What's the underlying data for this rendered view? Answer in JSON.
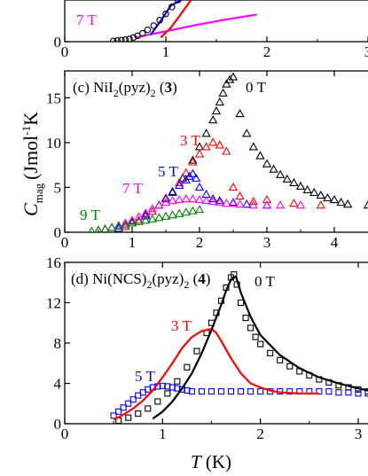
{
  "figure": {
    "ylabel_main": "C",
    "ylabel_sub": "mag",
    "ylabel_units": "(Jmol",
    "ylabel_sup": "-1",
    "ylabel_tail": "K",
    "xlabel_italic": "T",
    "xlabel_units": " (K)"
  },
  "chart_data": [
    {
      "type": "scatter",
      "title": "",
      "xlim": [
        0,
        3
      ],
      "ylim": [
        0,
        3
      ],
      "xticks": [
        "0",
        "1",
        "2",
        "3"
      ],
      "annotations": [
        {
          "text": "7 T",
          "color": "#ff00ff"
        }
      ],
      "series": [
        {
          "name": "7 T",
          "color": "#ff00ff",
          "marker": "line",
          "x": [
            0.7,
            1.0,
            1.3,
            1.6,
            1.9
          ],
          "y": [
            0.3,
            0.75,
            1.2,
            1.6,
            1.95
          ]
        },
        {
          "name": "",
          "color": "#ff0000",
          "marker": "line",
          "x": [
            0.95,
            1.05,
            1.15,
            1.25
          ],
          "y": [
            0.3,
            1.0,
            2.0,
            3.0
          ]
        },
        {
          "name": "",
          "color": "#0000ff",
          "marker": "line",
          "x": [
            0.85,
            0.95,
            1.05,
            1.15
          ],
          "y": [
            0.5,
            1.5,
            2.6,
            3.0
          ]
        },
        {
          "name": "",
          "color": "#000000",
          "marker": "circle",
          "x": [
            0.48,
            0.52,
            0.56,
            0.6,
            0.64,
            0.68,
            0.72,
            0.77,
            0.82,
            0.88,
            0.94,
            1.0,
            1.06,
            1.12
          ],
          "y": [
            0.05,
            0.08,
            0.1,
            0.14,
            0.2,
            0.3,
            0.42,
            0.6,
            0.85,
            1.15,
            1.55,
            2.0,
            2.5,
            3.0
          ]
        }
      ]
    },
    {
      "type": "scatter",
      "title": "(c) NiI2(pyz)2 (3)",
      "title_parts": {
        "a": "(c) NiI",
        "b": "2",
        "c": "(pyz)",
        "d": "2",
        "e": " (",
        "f": "3",
        "g": ")"
      },
      "xlim": [
        0,
        4.5
      ],
      "ylim": [
        0,
        18
      ],
      "xticks": [
        "0",
        "1",
        "2",
        "3",
        "4"
      ],
      "yticks": [
        "0",
        "5",
        "10",
        "15"
      ],
      "annotations": [
        {
          "text": "0 T",
          "color": "#000000"
        },
        {
          "text": "3 T",
          "color": "#ff0000"
        },
        {
          "text": "5 T",
          "color": "#0000ff"
        },
        {
          "text": "7 T",
          "color": "#ff00ff"
        },
        {
          "text": "9 T",
          "color": "#008000"
        }
      ],
      "series": [
        {
          "name": "0 T",
          "color": "#000000",
          "marker": "triangle",
          "x": [
            0.8,
            1.0,
            1.2,
            1.4,
            1.6,
            1.75,
            1.9,
            2.0,
            2.1,
            2.2,
            2.25,
            2.3,
            2.35,
            2.4,
            2.45,
            2.5,
            2.6,
            2.7,
            2.8,
            2.9,
            3.0,
            3.1,
            3.2,
            3.3,
            3.4,
            3.5,
            3.6,
            3.7,
            3.8,
            3.9,
            4.0,
            4.1,
            4.2,
            4.5
          ],
          "y": [
            0.7,
            1.2,
            2.0,
            3.0,
            4.5,
            6.0,
            8.0,
            9.5,
            11.0,
            12.5,
            13.5,
            14.5,
            15.5,
            16.5,
            17.0,
            17.3,
            13.2,
            11.0,
            9.5,
            8.5,
            7.6,
            7.0,
            6.4,
            5.9,
            5.5,
            5.1,
            4.7,
            4.4,
            4.1,
            3.8,
            3.6,
            3.3,
            3.1,
            3.0
          ]
        },
        {
          "name": "3 T",
          "color": "#ff0000",
          "marker": "triangle",
          "x": [
            0.9,
            1.1,
            1.3,
            1.5,
            1.7,
            1.8,
            1.9,
            2.0,
            2.1,
            2.2,
            2.3,
            2.4,
            2.5,
            2.6,
            2.8,
            3.0,
            3.4,
            3.8
          ],
          "y": [
            0.6,
            1.3,
            2.3,
            3.8,
            5.5,
            6.6,
            7.8,
            8.7,
            9.5,
            10.0,
            9.7,
            9.0,
            5.0,
            4.0,
            3.4,
            3.6,
            3.2,
            3.0
          ]
        },
        {
          "name": "5 T",
          "color": "#0000ff",
          "marker": "triangle",
          "x": [
            0.8,
            1.0,
            1.2,
            1.4,
            1.5,
            1.6,
            1.7,
            1.8,
            1.85,
            1.9,
            1.95,
            2.0,
            2.1,
            2.2,
            2.3,
            2.5,
            2.7,
            3.0
          ],
          "y": [
            0.4,
            1.0,
            1.8,
            3.0,
            3.7,
            4.4,
            5.2,
            5.8,
            6.2,
            6.5,
            6.0,
            5.0,
            4.2,
            3.7,
            3.5,
            3.3,
            3.1,
            3.0
          ]
        },
        {
          "name": "7 T",
          "color": "#ff00ff",
          "marker": "triangle",
          "x": [
            0.5,
            0.6,
            0.7,
            0.8,
            0.9,
            1.0,
            1.1,
            1.2,
            1.3,
            1.4,
            1.5,
            1.6,
            1.7,
            1.8,
            1.9,
            2.0,
            2.1,
            2.2,
            2.3,
            2.4,
            2.5,
            2.6,
            2.8,
            3.0,
            3.2,
            3.5
          ],
          "y": [
            0.2,
            0.3,
            0.5,
            0.7,
            1.0,
            1.3,
            1.7,
            2.1,
            2.6,
            3.0,
            3.3,
            3.5,
            3.6,
            3.7,
            3.7,
            3.6,
            3.5,
            3.4,
            3.3,
            3.2,
            3.2,
            3.1,
            3.0,
            3.0,
            3.0,
            3.0
          ]
        },
        {
          "name": "9 T",
          "color": "#008000",
          "marker": "triangle",
          "x": [
            0.4,
            0.5,
            0.6,
            0.7,
            0.8,
            0.9,
            1.0,
            1.1,
            1.2,
            1.3,
            1.4,
            1.5,
            1.6,
            1.7,
            1.8,
            1.9,
            2.0
          ],
          "y": [
            0.1,
            0.2,
            0.35,
            0.5,
            0.65,
            0.8,
            1.0,
            1.15,
            1.3,
            1.45,
            1.6,
            1.75,
            1.9,
            2.05,
            2.2,
            2.35,
            2.5
          ]
        }
      ]
    },
    {
      "type": "scatter",
      "title": "(d) Ni(NCS)2(pyz)2 (4)",
      "title_parts": {
        "a": "(d) Ni(NCS)",
        "b": "2",
        "c": "(pyz)",
        "d": "2",
        "e": " (",
        "f": "4",
        "g": ")"
      },
      "xlim": [
        0,
        3.1
      ],
      "ylim": [
        0,
        16
      ],
      "xticks": [
        "0",
        "1",
        "2",
        "3"
      ],
      "yticks": [
        "0",
        "4",
        "8",
        "12",
        "16"
      ],
      "annotations": [
        {
          "text": "0 T",
          "color": "#000000"
        },
        {
          "text": "3 T",
          "color": "#ff0000"
        },
        {
          "text": "5 T",
          "color": "#0000ff"
        }
      ],
      "series": [
        {
          "name": "0 T",
          "color": "#000000",
          "marker": "square",
          "x": [
            0.55,
            0.65,
            0.75,
            0.85,
            0.95,
            1.05,
            1.15,
            1.25,
            1.35,
            1.45,
            1.5,
            1.55,
            1.6,
            1.65,
            1.7,
            1.73,
            1.76,
            1.8,
            1.85,
            1.9,
            1.95,
            2.0,
            2.1,
            2.2,
            2.3,
            2.4,
            2.5,
            2.6,
            2.7,
            2.8,
            2.9,
            3.0,
            3.1
          ],
          "y": [
            0.3,
            0.6,
            1.0,
            1.5,
            2.2,
            3.0,
            4.2,
            5.6,
            7.2,
            9.0,
            10.0,
            11.0,
            12.2,
            13.5,
            14.5,
            14.8,
            13.8,
            12.0,
            10.5,
            9.5,
            8.6,
            7.9,
            7.0,
            6.3,
            5.7,
            5.2,
            4.8,
            4.4,
            4.1,
            3.8,
            3.6,
            3.4,
            3.2
          ]
        },
        {
          "name": "5 T",
          "color": "#0000ff",
          "marker": "square",
          "x": [
            0.5,
            0.55,
            0.6,
            0.65,
            0.7,
            0.75,
            0.8,
            0.85,
            0.9,
            0.95,
            1.0,
            1.05,
            1.1,
            1.15,
            1.2,
            1.25,
            1.3,
            1.4,
            1.5,
            1.6,
            1.7,
            1.8,
            1.9,
            2.0,
            2.1,
            2.2,
            2.3,
            2.4,
            2.5,
            2.6,
            2.7,
            2.8,
            2.9,
            3.0,
            3.1
          ],
          "y": [
            0.8,
            1.2,
            1.6,
            2.0,
            2.4,
            2.8,
            3.1,
            3.4,
            3.6,
            3.7,
            3.75,
            3.7,
            3.6,
            3.5,
            3.4,
            3.3,
            3.2,
            3.2,
            3.2,
            3.2,
            3.2,
            3.2,
            3.2,
            3.2,
            3.2,
            3.2,
            3.2,
            3.2,
            3.2,
            3.2,
            3.2,
            3.1,
            3.1,
            3.0,
            3.0
          ]
        },
        {
          "name": "3 T",
          "color": "#ff0000",
          "marker": "line",
          "x": [
            0.5,
            0.6,
            0.7,
            0.8,
            0.9,
            1.0,
            1.1,
            1.2,
            1.3,
            1.4,
            1.5,
            1.55,
            1.6,
            1.7,
            1.8,
            1.9,
            2.0,
            2.1,
            2.2,
            2.4,
            2.6
          ],
          "y": [
            0.4,
            0.9,
            1.5,
            2.3,
            3.3,
            4.6,
            6.0,
            7.5,
            8.6,
            9.2,
            9.4,
            9.0,
            8.2,
            6.5,
            5.0,
            4.0,
            3.6,
            3.3,
            3.1,
            3.0,
            3.0
          ]
        },
        {
          "name": "",
          "color": "#000000",
          "marker": "line",
          "x": [
            0.9,
            1.0,
            1.1,
            1.2,
            1.3,
            1.4,
            1.5,
            1.6,
            1.65,
            1.7,
            1.75,
            1.8,
            1.9,
            2.0,
            2.2,
            2.4,
            2.6,
            2.8,
            3.0,
            3.1
          ],
          "y": [
            0.5,
            1.2,
            2.2,
            3.5,
            5.0,
            7.0,
            9.3,
            11.8,
            13.2,
            14.3,
            14.6,
            13.0,
            10.6,
            8.8,
            6.8,
            5.5,
            4.6,
            4.0,
            3.5,
            3.3
          ]
        }
      ]
    }
  ]
}
